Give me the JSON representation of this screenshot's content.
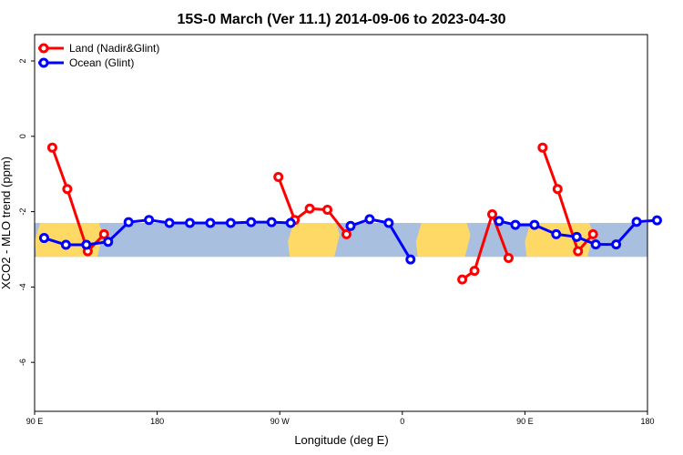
{
  "chart_data": {
    "type": "line",
    "title": "15S-0 March (Ver 11.1)   2014-09-06 to 2023-04-30",
    "xlabel": "Longitude (deg E)",
    "ylabel": "XCO2 - MLO trend (ppm)",
    "xlim": [
      90,
      540
    ],
    "ylim": [
      -7.3,
      2.7
    ],
    "x_ticks": [
      90,
      180,
      270,
      360,
      450,
      540
    ],
    "x_tick_labels": [
      "90 E",
      "180",
      "90 W",
      "0",
      "90 E",
      "180"
    ],
    "y_ticks": [
      2,
      0,
      -2,
      -4,
      -6
    ],
    "y_tick_labels": [
      "2",
      "0",
      "-2",
      "-4",
      "-6"
    ],
    "legend_position": "top-left",
    "series": [
      {
        "name": "Land (Nadir&Glint)",
        "color": "#ff0000",
        "segments": [
          [
            [
              103,
              -0.3
            ],
            [
              114,
              -1.4
            ],
            [
              129,
              -3.05
            ],
            [
              141,
              -2.6
            ]
          ],
          [
            [
              269,
              -1.08
            ],
            [
              281,
              -2.22
            ],
            [
              292,
              -1.92
            ],
            [
              305,
              -1.95
            ],
            [
              319,
              -2.6
            ]
          ],
          [
            [
              404,
              -3.8
            ],
            [
              413,
              -3.57
            ],
            [
              426,
              -2.07
            ],
            [
              438,
              -3.23
            ]
          ],
          [
            [
              463,
              -0.3
            ],
            [
              474,
              -1.4
            ],
            [
              489,
              -3.05
            ],
            [
              500,
              -2.6
            ]
          ]
        ]
      },
      {
        "name": "Ocean (Glint)",
        "color": "#0000ff",
        "segments": [
          [
            [
              97,
              -2.7
            ],
            [
              113,
              -2.88
            ],
            [
              128,
              -2.88
            ],
            [
              144,
              -2.8
            ],
            [
              159,
              -2.28
            ],
            [
              174,
              -2.22
            ],
            [
              189,
              -2.3
            ],
            [
              204,
              -2.3
            ],
            [
              219,
              -2.3
            ],
            [
              234,
              -2.3
            ],
            [
              249,
              -2.28
            ],
            [
              264,
              -2.28
            ],
            [
              278,
              -2.3
            ]
          ],
          [
            [
              322,
              -2.38
            ],
            [
              336,
              -2.2
            ],
            [
              350,
              -2.3
            ],
            [
              366,
              -3.27
            ]
          ],
          [
            [
              431,
              -2.25
            ],
            [
              443,
              -2.35
            ],
            [
              457,
              -2.35
            ],
            [
              473,
              -2.6
            ],
            [
              488,
              -2.67
            ],
            [
              502,
              -2.87
            ],
            [
              517,
              -2.87
            ],
            [
              532,
              -2.27
            ],
            [
              547,
              -2.23
            ]
          ]
        ]
      }
    ],
    "band": {
      "lat_label": "15S-0",
      "y_range": [
        -2.3,
        -3.2
      ],
      "land_spans": [
        [
          90,
          140
        ],
        [
          276,
          314
        ],
        [
          370,
          410
        ],
        [
          450,
          500
        ]
      ]
    }
  }
}
